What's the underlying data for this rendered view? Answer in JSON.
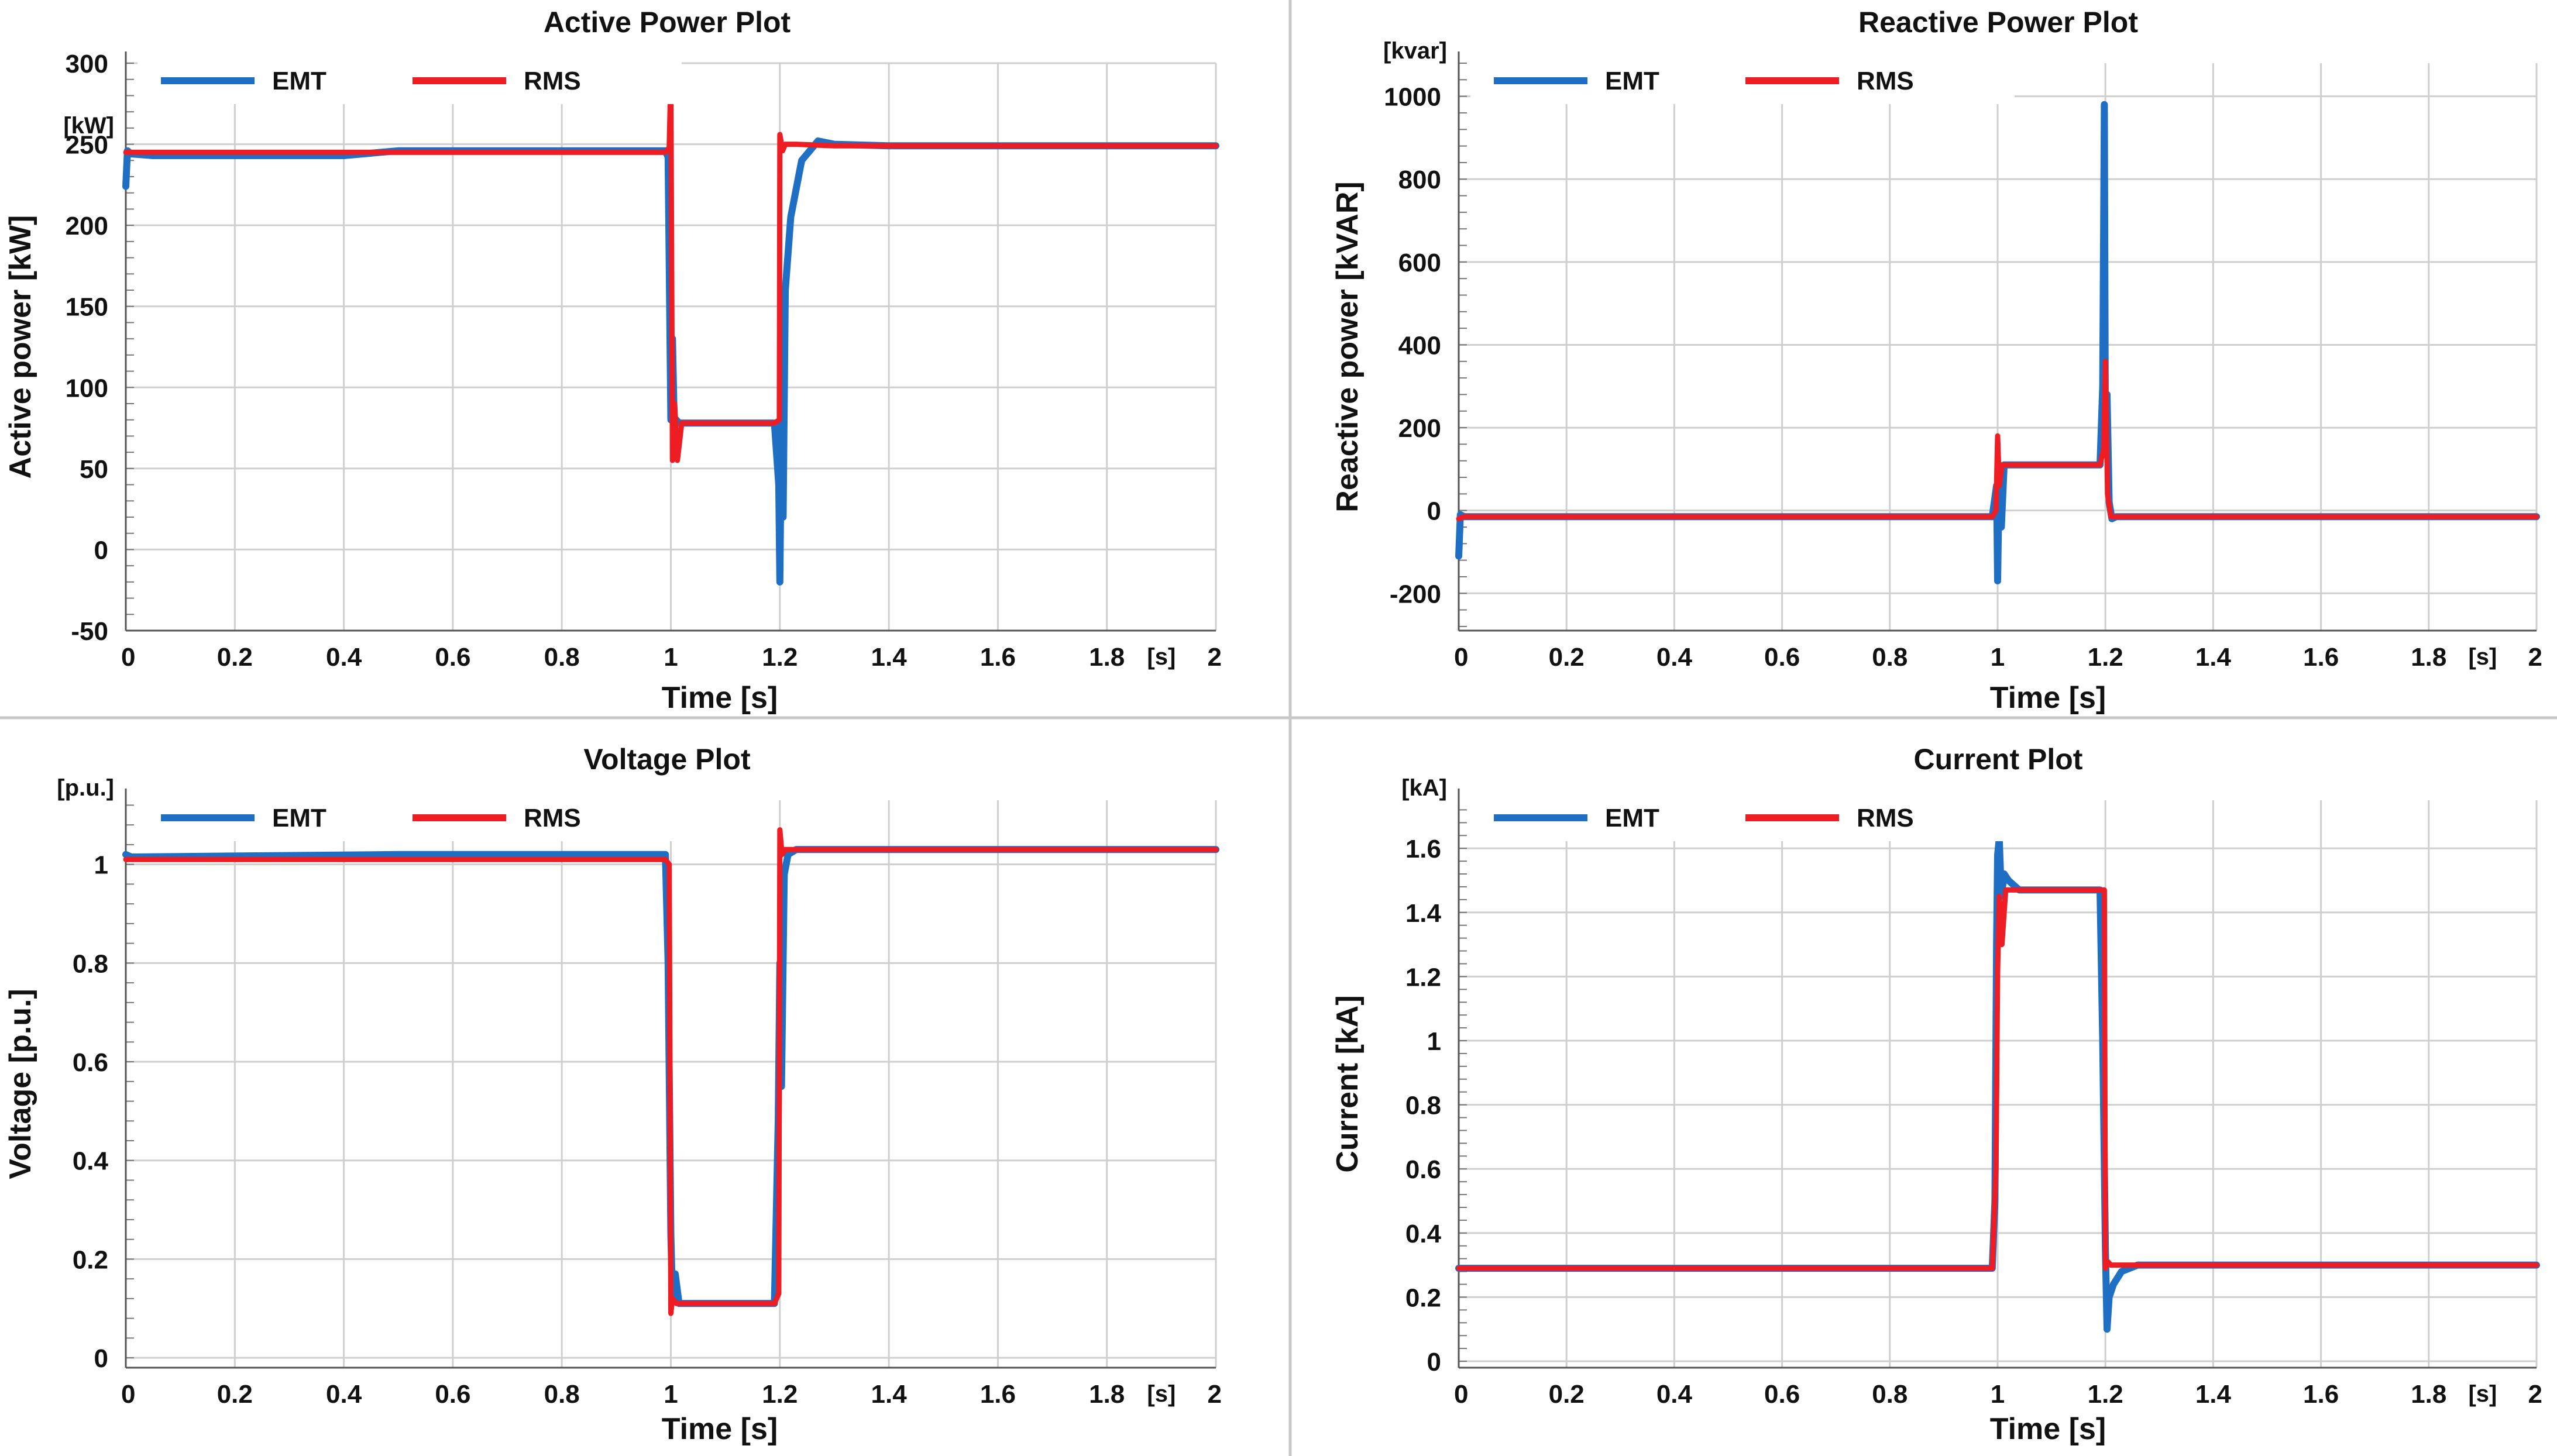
{
  "colors": {
    "emt": "#1f6fc4",
    "rms": "#ee1d24"
  },
  "chart_data": [
    {
      "type": "line",
      "title": "Active Power Plot",
      "xlabel": "Time [s]",
      "ylabel": "Active power [kW]",
      "x_unit": "[s]",
      "y_unit": "[kW]",
      "xlim": [
        0,
        2
      ],
      "ylim": [
        -50,
        300
      ],
      "xticks": [
        0,
        0.2,
        0.4,
        0.6,
        0.8,
        1,
        1.2,
        1.4,
        1.6,
        1.8,
        2
      ],
      "xtick_labels": [
        "0",
        "0.2",
        "0.4",
        "0.6",
        "0.8",
        "1",
        "1.2",
        "1.4",
        "1.6",
        "1.8",
        "2"
      ],
      "yticks": [
        -50,
        0,
        50,
        100,
        150,
        200,
        250,
        300
      ],
      "ytick_labels": [
        "-50",
        "0",
        "50",
        "100",
        "150",
        "200",
        "250",
        "300"
      ],
      "legend": [
        "EMT",
        "RMS"
      ],
      "series": [
        {
          "name": "EMT",
          "x": [
            0,
            0.003,
            0.01,
            0.05,
            0.4,
            0.5,
            0.99,
            0.995,
            1.0,
            1.003,
            1.006,
            1.01,
            1.015,
            1.03,
            1.1,
            1.19,
            1.198,
            1.2,
            1.203,
            1.206,
            1.21,
            1.22,
            1.24,
            1.27,
            1.3,
            1.4,
            2.0
          ],
          "y": [
            224,
            246,
            244,
            243,
            243,
            246,
            246,
            242,
            80,
            130,
            80,
            80,
            78,
            78,
            78,
            78,
            40,
            -20,
            80,
            20,
            160,
            205,
            240,
            252,
            250,
            249,
            249
          ]
        },
        {
          "name": "RMS",
          "x": [
            0,
            0.01,
            0.99,
            0.997,
            1.0,
            1.003,
            1.007,
            1.012,
            1.02,
            1.19,
            1.199,
            1.2,
            1.205,
            1.21,
            1.23,
            1.3,
            2.0
          ],
          "y": [
            245,
            245,
            245,
            248,
            292,
            55,
            90,
            55,
            78,
            78,
            80,
            256,
            246,
            250,
            250,
            249,
            249
          ]
        }
      ]
    },
    {
      "type": "line",
      "title": "Reactive Power Plot",
      "xlabel": "Time [s]",
      "ylabel": "Reactive power [kVAR]",
      "x_unit": "[s]",
      "y_unit": "[kvar]",
      "xlim": [
        0,
        2
      ],
      "ylim": [
        -290,
        1080
      ],
      "xticks": [
        0,
        0.2,
        0.4,
        0.6,
        0.8,
        1,
        1.2,
        1.4,
        1.6,
        1.8,
        2
      ],
      "xtick_labels": [
        "0",
        "0.2",
        "0.4",
        "0.6",
        "0.8",
        "1",
        "1.2",
        "1.4",
        "1.6",
        "1.8",
        "2"
      ],
      "yticks": [
        -200,
        0,
        200,
        400,
        600,
        800,
        1000
      ],
      "ytick_labels": [
        "-200",
        "0",
        "200",
        "400",
        "600",
        "800",
        "1000"
      ],
      "legend": [
        "EMT",
        "RMS"
      ],
      "series": [
        {
          "name": "EMT",
          "x": [
            0,
            0.003,
            0.01,
            0.99,
            0.998,
            1.0,
            1.003,
            1.007,
            1.012,
            1.02,
            1.19,
            1.195,
            1.198,
            1.2,
            1.203,
            1.207,
            1.212,
            1.22,
            1.3,
            2.0
          ],
          "y": [
            -110,
            -10,
            -15,
            -15,
            60,
            -170,
            100,
            -40,
            110,
            110,
            110,
            300,
            980,
            150,
            280,
            20,
            -20,
            -15,
            -15,
            -15
          ]
        },
        {
          "name": "RMS",
          "x": [
            0,
            0.01,
            0.99,
            0.997,
            1.0,
            1.003,
            1.008,
            1.02,
            1.19,
            1.197,
            1.2,
            1.204,
            1.21,
            2.0
          ],
          "y": [
            -20,
            -15,
            -15,
            0,
            180,
            60,
            110,
            110,
            110,
            150,
            360,
            40,
            -15,
            -15
          ]
        }
      ]
    },
    {
      "type": "line",
      "title": "Voltage Plot",
      "xlabel": "Time [s]",
      "ylabel": "Voltage [p.u.]",
      "x_unit": "[s]",
      "y_unit": "[p.u.]",
      "xlim": [
        0,
        2
      ],
      "ylim": [
        -0.02,
        1.13
      ],
      "xticks": [
        0,
        0.2,
        0.4,
        0.6,
        0.8,
        1,
        1.2,
        1.4,
        1.6,
        1.8,
        2
      ],
      "xtick_labels": [
        "0",
        "0.2",
        "0.4",
        "0.6",
        "0.8",
        "1",
        "1.2",
        "1.4",
        "1.6",
        "1.8",
        "2"
      ],
      "yticks": [
        0,
        0.2,
        0.4,
        0.6,
        0.8,
        1
      ],
      "ytick_labels": [
        "0",
        "0.2",
        "0.4",
        "0.6",
        "0.8",
        "1"
      ],
      "legend": [
        "EMT",
        "RMS"
      ],
      "series": [
        {
          "name": "EMT",
          "x": [
            0,
            0.01,
            0.5,
            0.99,
            0.995,
            1.0,
            1.003,
            1.008,
            1.015,
            1.1,
            1.19,
            1.197,
            1.2,
            1.203,
            1.208,
            1.215,
            1.23,
            1.3,
            1.35,
            2.0
          ],
          "y": [
            1.02,
            1.015,
            1.02,
            1.02,
            0.8,
            0.25,
            0.12,
            0.17,
            0.11,
            0.11,
            0.11,
            0.48,
            0.8,
            0.55,
            0.98,
            1.02,
            1.03,
            1.03,
            1.03,
            1.03
          ]
        },
        {
          "name": "RMS",
          "x": [
            0,
            0.99,
            0.997,
            1.0,
            1.003,
            1.01,
            1.19,
            1.198,
            1.2,
            1.204,
            1.21,
            1.25,
            2.0
          ],
          "y": [
            1.01,
            1.01,
            1.0,
            0.09,
            0.12,
            0.11,
            0.11,
            0.13,
            1.07,
            1.02,
            1.03,
            1.03,
            1.03
          ]
        }
      ]
    },
    {
      "type": "line",
      "title": "Current Plot",
      "xlabel": "Time [s]",
      "ylabel": "Current [kA]",
      "x_unit": "[s]",
      "y_unit": "[kA]",
      "xlim": [
        0,
        2
      ],
      "ylim": [
        -0.02,
        1.75
      ],
      "xticks": [
        0,
        0.2,
        0.4,
        0.6,
        0.8,
        1,
        1.2,
        1.4,
        1.6,
        1.8,
        2
      ],
      "xtick_labels": [
        "0",
        "0.2",
        "0.4",
        "0.6",
        "0.8",
        "1",
        "1.2",
        "1.4",
        "1.6",
        "1.8",
        "2"
      ],
      "yticks": [
        0,
        0.2,
        0.4,
        0.6,
        0.8,
        1,
        1.2,
        1.4,
        1.6
      ],
      "ytick_labels": [
        "0",
        "0.2",
        "0.4",
        "0.6",
        "0.8",
        "1",
        "1.2",
        "1.4",
        "1.6"
      ],
      "legend": [
        "EMT",
        "RMS"
      ],
      "series": [
        {
          "name": "EMT",
          "x": [
            0,
            0.99,
            0.995,
            0.998,
            1.0,
            1.003,
            1.007,
            1.012,
            1.02,
            1.04,
            1.1,
            1.19,
            1.195,
            1.2,
            1.203,
            1.207,
            1.215,
            1.23,
            1.26,
            1.3,
            2.0
          ],
          "y": [
            0.29,
            0.29,
            0.5,
            1.3,
            1.58,
            1.63,
            1.45,
            1.52,
            1.5,
            1.47,
            1.47,
            1.47,
            1.0,
            0.35,
            0.1,
            0.2,
            0.24,
            0.28,
            0.3,
            0.3,
            0.3
          ]
        },
        {
          "name": "RMS",
          "x": [
            0,
            0.99,
            0.997,
            1.0,
            1.003,
            1.008,
            1.015,
            1.19,
            1.198,
            1.2,
            1.205,
            1.21,
            2.0
          ],
          "y": [
            0.29,
            0.29,
            0.6,
            1.22,
            1.45,
            1.3,
            1.47,
            1.47,
            1.47,
            0.29,
            0.31,
            0.3,
            0.3
          ]
        }
      ]
    }
  ]
}
